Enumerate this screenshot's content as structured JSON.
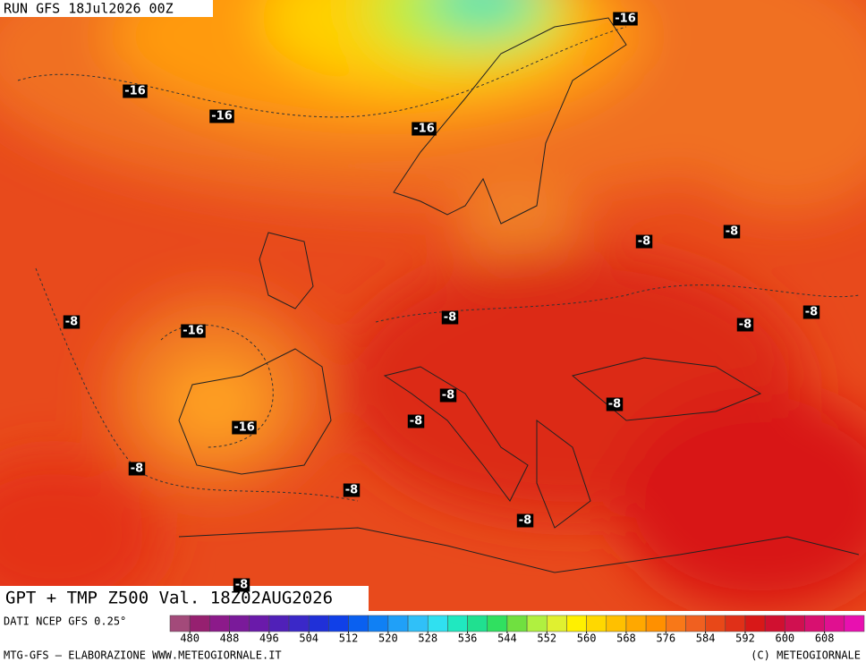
{
  "header": {
    "run": "RUN GFS 18Jul2026 00Z",
    "title": "GPT + TMP Z500 Val. 18Z02AUG2026"
  },
  "contour_labels": [
    "-16",
    "-16",
    "-16",
    "-16",
    "-16",
    "-16",
    "-8",
    "-8",
    "-8",
    "-8",
    "-8",
    "-8",
    "-8",
    "-8",
    "-8",
    "-8",
    "-8",
    "-8",
    "-8"
  ],
  "footer": {
    "source": "DATI NCEP GFS 0.25°",
    "credit": "MTG-GFS — ELABORAZIONE WWW.METEOGIORNALE.IT",
    "copyright": "(C) METEOGIORNALE"
  },
  "colorbar": {
    "labels": [
      480,
      488,
      496,
      504,
      512,
      520,
      528,
      536,
      544,
      552,
      560,
      568,
      576,
      584,
      592,
      600,
      608
    ],
    "colors": [
      "#a34a7a",
      "#962070",
      "#8c1a8a",
      "#7a1a9a",
      "#6a1aaa",
      "#5020b8",
      "#3a28c8",
      "#2030d8",
      "#1040e8",
      "#0a60f0",
      "#1080f4",
      "#20a0f8",
      "#30c0f8",
      "#30e0f0",
      "#20e8c0",
      "#20e090",
      "#30e060",
      "#70e040",
      "#b0f040",
      "#e0f030",
      "#fff000",
      "#ffd800",
      "#ffc000",
      "#ffa800",
      "#ff9000",
      "#f87818",
      "#f06020",
      "#e84818",
      "#e03018",
      "#d81818",
      "#d01030",
      "#d01050",
      "#d81070",
      "#e01090",
      "#e810b0"
    ]
  }
}
